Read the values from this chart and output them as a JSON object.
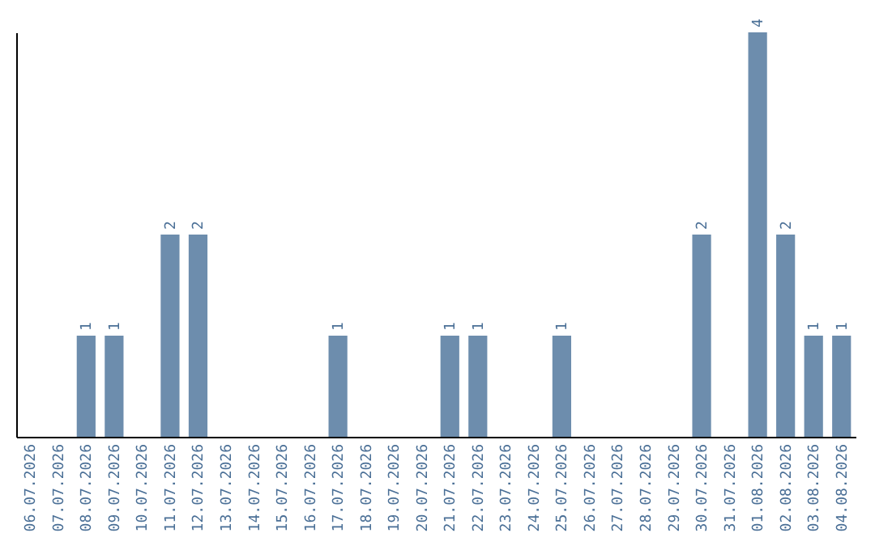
{
  "chart_data": {
    "type": "bar",
    "categories": [
      "06.07.2026",
      "07.07.2026",
      "08.07.2026",
      "09.07.2026",
      "10.07.2026",
      "11.07.2026",
      "12.07.2026",
      "13.07.2026",
      "14.07.2026",
      "15.07.2026",
      "16.07.2026",
      "17.07.2026",
      "18.07.2026",
      "19.07.2026",
      "20.07.2026",
      "21.07.2026",
      "22.07.2026",
      "23.07.2026",
      "24.07.2026",
      "25.07.2026",
      "26.07.2026",
      "27.07.2026",
      "28.07.2026",
      "29.07.2026",
      "30.07.2026",
      "31.07.2026",
      "01.08.2026",
      "02.08.2026",
      "03.08.2026",
      "04.08.2026"
    ],
    "values": [
      0,
      0,
      1,
      1,
      0,
      2,
      2,
      0,
      0,
      0,
      0,
      1,
      0,
      0,
      0,
      1,
      1,
      0,
      0,
      1,
      0,
      0,
      0,
      0,
      2,
      0,
      4,
      2,
      1,
      1
    ],
    "value_labels": [
      null,
      null,
      "1",
      "1",
      null,
      "2",
      "2",
      null,
      null,
      null,
      null,
      "1",
      null,
      null,
      null,
      "1",
      "1",
      null,
      null,
      "1",
      null,
      null,
      null,
      null,
      "2",
      null,
      "4",
      "2",
      "1",
      "1"
    ],
    "color": "#6d8dad",
    "tick_labels": "x",
    "grid": false
  }
}
